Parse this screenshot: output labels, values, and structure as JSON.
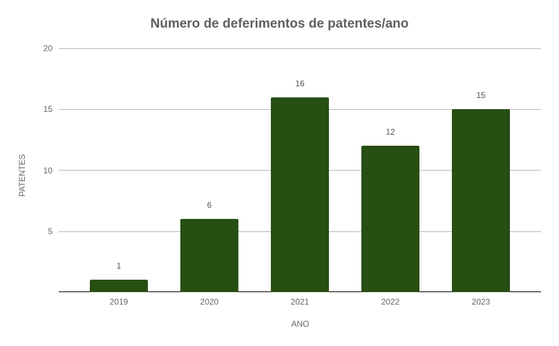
{
  "chart_data": {
    "type": "bar",
    "title": "Número de deferimentos de patentes/ano",
    "xlabel": "ANO",
    "ylabel": "PATENTES",
    "categories": [
      "2019",
      "2020",
      "2021",
      "2022",
      "2023"
    ],
    "values": [
      1,
      6,
      16,
      12,
      15
    ],
    "data_labels": [
      "1",
      "6",
      "16",
      "12",
      "15"
    ],
    "ylim": [
      0,
      20
    ],
    "yticks": [
      "5",
      "10",
      "15",
      "20"
    ],
    "ytick_values": [
      5,
      10,
      15,
      20
    ],
    "grid": true,
    "legend": "none",
    "bar_color": "#274e13"
  }
}
